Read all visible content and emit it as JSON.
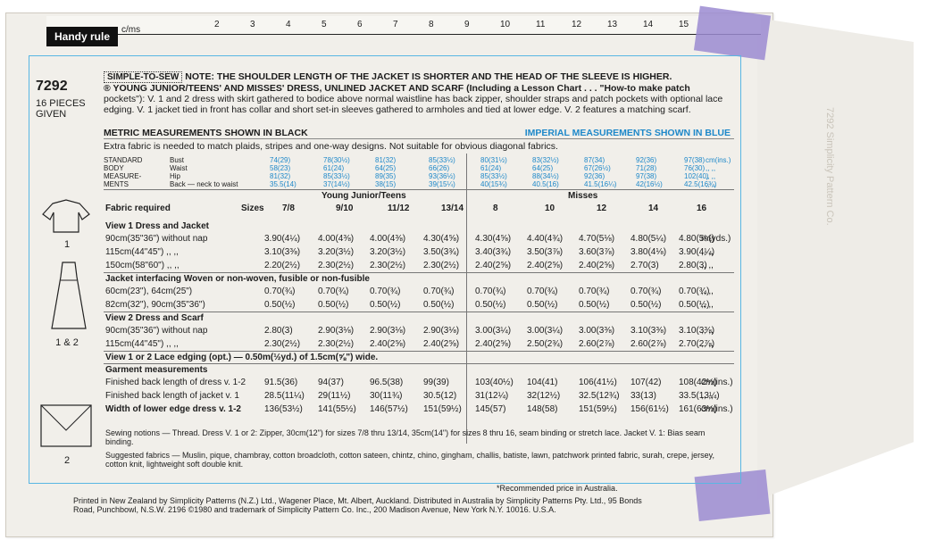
{
  "ruler": {
    "label": "Handy rule",
    "unit": "c/ms",
    "ticks": [
      "2",
      "3",
      "4",
      "5",
      "6",
      "7",
      "8",
      "9",
      "10",
      "11",
      "12",
      "13",
      "14",
      "15"
    ]
  },
  "pattern": {
    "number": "7292",
    "pieces": "16 PIECES GIVEN"
  },
  "notes": {
    "logo": "SIMPLE-TO-SEW",
    "note": "NOTE: THE SHOULDER LENGTH OF THE JACKET IS SHORTER AND THE HEAD OF THE SLEEVE IS HIGHER.",
    "title": "® YOUNG JUNIOR/TEENS' AND MISSES' DRESS, UNLINED JACKET AND SCARF (Including a Lesson Chart . . . \"How-to make patch",
    "desc": "pockets\"): V. 1 and 2 dress with skirt gathered to bodice above normal waistline has back zipper, shoulder straps and patch pockets with optional lace edging. V. 1 jacket tied in front has collar and short set-in sleeves gathered to armholes and tied at lower edge. V. 2 features a matching scarf."
  },
  "metric": "METRIC MEASUREMENTS SHOWN IN BLACK",
  "imperial": "IMPERIAL MEASUREMENTS SHOWN IN BLUE",
  "extra": "Extra fabric is needed to match plaids, stripes and one-way designs. Not suitable for obvious diagonal fabrics.",
  "body_labels": [
    "STANDARD",
    "BODY",
    "MEASURE-",
    "MENTS"
  ],
  "body_items": [
    "Bust",
    "Waist",
    "Hip",
    "Back — neck to waist"
  ],
  "groups": {
    "young": "Young Junior/Teens",
    "misses": "Misses"
  },
  "fabric_required": "Fabric required",
  "sizes_label": "Sizes",
  "sizes": [
    "7/8",
    "9/10",
    "11/12",
    "13/14",
    "8",
    "10",
    "12",
    "14",
    "16"
  ],
  "rows": [
    {
      "label": "View 1  Dress and Jacket",
      "bold": true,
      "vals": []
    },
    {
      "label": "90cm(35\"36\")  without nap",
      "vals": [
        "3.90(4¼)",
        "4.00(4⅜)",
        "4.00(4⅜)",
        "4.30(4⅝)",
        "4.30(4⅝)",
        "4.40(4¾)",
        "4.70(5⅛)",
        "4.80(5¼)",
        "4.80(5¼)"
      ],
      "unit": "m(yds.)"
    },
    {
      "label": "115cm(44\"45\")      ,,    ,,",
      "vals": [
        "3.10(3⅜)",
        "3.20(3½)",
        "3.20(3½)",
        "3.50(3¾)",
        "3.40(3¾)",
        "3.50(3⅞)",
        "3.60(3⅞)",
        "3.80(4⅛)",
        "3.90(4¼)"
      ],
      "unit": ",,  ,,"
    },
    {
      "label": "150cm(58\"60\")      ,,    ,,",
      "vals": [
        "2.20(2½)",
        "2.30(2½)",
        "2.30(2½)",
        "2.30(2½)",
        "2.40(2⅝)",
        "2.40(2⅝)",
        "2.40(2⅝)",
        "2.70(3)",
        "2.80(3)"
      ],
      "unit": ",,  ,,"
    },
    {
      "label": "Jacket interfacing  Woven or non-woven, fusible or non-fusible",
      "bold": true,
      "vals": []
    },
    {
      "label": "60cm(23\"), 64cm(25\")",
      "vals": [
        "0.70(¾)",
        "0.70(¾)",
        "0.70(¾)",
        "0.70(¾)",
        "0.70(¾)",
        "0.70(¾)",
        "0.70(¾)",
        "0.70(¾)",
        "0.70(¾)"
      ],
      "unit": ",,  ,,"
    },
    {
      "label": "82cm(32\"), 90cm(35\"36\")",
      "vals": [
        "0.50(½)",
        "0.50(½)",
        "0.50(½)",
        "0.50(½)",
        "0.50(½)",
        "0.50(½)",
        "0.50(½)",
        "0.50(½)",
        "0.50(½)"
      ],
      "unit": ",,  ,,"
    },
    {
      "label": "View 2  Dress and Scarf",
      "bold": true,
      "vals": []
    },
    {
      "label": "90cm(35\"36\")  without nap",
      "vals": [
        "2.80(3)",
        "2.90(3⅛)",
        "2.90(3⅛)",
        "2.90(3⅛)",
        "3.00(3¼)",
        "3.00(3¼)",
        "3.00(3⅜)",
        "3.10(3⅜)",
        "3.10(3⅜)"
      ],
      "unit": ",,  ,,"
    },
    {
      "label": "115cm(44\"45\")      ,,    ,,",
      "vals": [
        "2.30(2½)",
        "2.30(2½)",
        "2.40(2⅝)",
        "2.40(2⅝)",
        "2.40(2⅝)",
        "2.50(2¾)",
        "2.60(2⅞)",
        "2.60(2⅞)",
        "2.70(2⅞)"
      ],
      "unit": ",,  ,,"
    },
    {
      "label": "View 1 or 2  Lace edging (opt.) — 0.50m(½yd.) of 1.5cm(⅝\") wide.",
      "bold": true,
      "vals": []
    },
    {
      "label": "Garment measurements",
      "bold": true,
      "vals": []
    },
    {
      "label": "Finished back length of dress v. 1-2",
      "vals": [
        "91.5(36)",
        "94(37)",
        "96.5(38)",
        "99(39)",
        "103(40½)",
        "104(41)",
        "106(41½)",
        "107(42)",
        "108(42½)"
      ],
      "unit": "cm(ins.)"
    },
    {
      "label": "Finished back length of jacket v. 1",
      "vals": [
        "28.5(11¼)",
        "29(11½)",
        "30(11¾)",
        "30.5(12)",
        "31(12¼)",
        "32(12½)",
        "32.5(12¾)",
        "33(13)",
        "33.5(13¼)"
      ],
      "unit": ",,  ,,"
    },
    {
      "label": "Width of lower edge dress v. 1-2",
      "bold": true,
      "vals": [
        "136(53½)",
        "141(55½)",
        "146(57½)",
        "151(59½)",
        "145(57)",
        "148(58)",
        "151(59½)",
        "156(61½)",
        "161(63½)"
      ],
      "unit": "cm(ins.)"
    }
  ],
  "body_vals": [
    [
      "74(29)",
      "78(30½)",
      "81(32)",
      "85(33½)",
      "80(31½)",
      "83(32½)",
      "87(34)",
      "92(36)",
      "97(38)"
    ],
    [
      "58(23)",
      "61(24)",
      "64(25)",
      "66(26)",
      "61(24)",
      "64(25)",
      "67(26½)",
      "71(28)",
      "76(30)"
    ],
    [
      "81(32)",
      "85(33½)",
      "89(35)",
      "93(36½)",
      "85(33½)",
      "88(34½)",
      "92(36)",
      "97(38)",
      "102(40)"
    ],
    [
      "35.5(14)",
      "37(14½)",
      "38(15)",
      "39(15¼)",
      "40(15¾)",
      "40.5(16)",
      "41.5(16¼)",
      "42(16½)",
      "42.5(16¾)"
    ]
  ],
  "body_unit": [
    "cm(ins.)",
    ",,  ,,",
    ",,  ,,",
    ",,  ,,"
  ],
  "sewing": "Sewing notions — Thread. Dress V. 1 or 2: Zipper, 30cm(12\") for sizes 7/8 thru 13/14, 35cm(14\") for sizes 8 thru 16, seam binding or stretch lace. Jacket V. 1: Bias seam binding.",
  "fabrics": "Suggested fabrics — Muslin, pique, chambray, cotton broadcloth, cotton sateen, chintz, chino, gingham, challis, batiste, lawn, patchwork printed fabric, surah, crepe, jersey, cotton knit, lightweight soft double knit.",
  "rec": "*Recommended price in Australia.",
  "printed": "Printed in New Zealand by Simplicity Patterns (N.Z.) Ltd., Wagener Place, Mt. Albert, Auckland. Distributed in Australia by Simplicity Patterns Pty. Ltd., 95 Bonds Road, Punchbowl, N.S.W. 2196  ©1980 and trademark of Simplicity Pattern Co. Inc., 200 Madison Avenue, New York N.Y. 10016. U.S.A.",
  "views": {
    "v1": "1",
    "v12": "1 & 2",
    "v2": "2"
  },
  "flap_text": "7292 Simplicity Pattern Co."
}
